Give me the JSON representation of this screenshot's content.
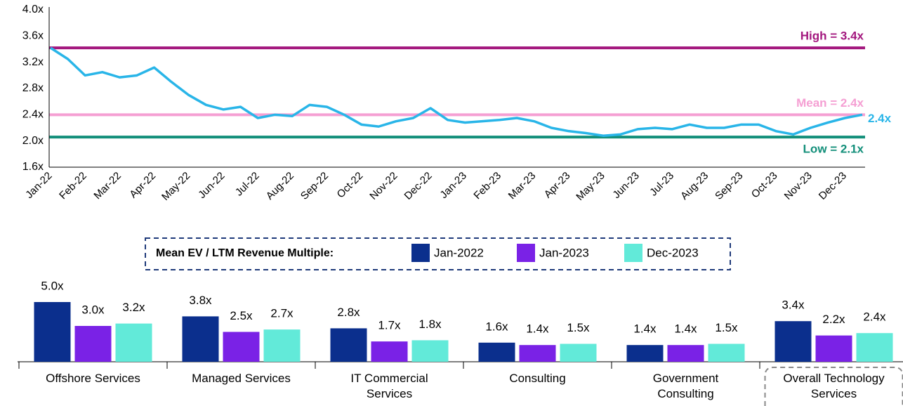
{
  "chart_data": [
    {
      "type": "line",
      "categories": [
        "Jan-22",
        null,
        "Feb-22",
        null,
        "Mar-22",
        null,
        "Apr-22",
        null,
        "May-22",
        null,
        "Jun-22",
        null,
        "Jul-22",
        null,
        "Aug-22",
        null,
        "Sep-22",
        null,
        "Oct-22",
        null,
        "Nov-22",
        null,
        "Dec-22",
        null,
        "Jan-23",
        null,
        "Feb-23",
        null,
        "Mar-23",
        null,
        "Apr-23",
        null,
        "May-23",
        null,
        "Jun-23",
        null,
        "Jul-23",
        null,
        "Aug-23",
        null,
        "Sep-23",
        null,
        "Oct-23",
        null,
        "Nov-23",
        null,
        "Dec-23",
        null
      ],
      "series": [
        {
          "color": "#29b5e8",
          "values": [
            3.42,
            3.25,
            3.0,
            3.05,
            2.97,
            3.0,
            3.12,
            2.9,
            2.7,
            2.55,
            2.48,
            2.52,
            2.35,
            2.4,
            2.38,
            2.55,
            2.52,
            2.4,
            2.25,
            2.22,
            2.3,
            2.35,
            2.5,
            2.32,
            2.28,
            2.3,
            2.32,
            2.35,
            2.3,
            2.2,
            2.15,
            2.12,
            2.08,
            2.1,
            2.18,
            2.2,
            2.18,
            2.25,
            2.2,
            2.2,
            2.25,
            2.25,
            2.15,
            2.1,
            2.2,
            2.28,
            2.35,
            2.4
          ]
        }
      ],
      "ylim": [
        1.6,
        4.0
      ],
      "yticks": [
        {
          "value": 1.6,
          "label": "1.6x"
        },
        {
          "value": 2.0,
          "label": "2.0x"
        },
        {
          "value": 2.4,
          "label": "2.4x"
        },
        {
          "value": 2.8,
          "label": "2.8x"
        },
        {
          "value": 3.2,
          "label": "3.2x"
        },
        {
          "value": 3.6,
          "label": "3.6x"
        },
        {
          "value": 4.0,
          "label": "4.0x"
        }
      ],
      "reference_lines": [
        {
          "label": "High = 3.4x",
          "value": 3.42,
          "color": "#a3177e",
          "label_side": "above"
        },
        {
          "label": "Mean = 2.4x",
          "value": 2.4,
          "color": "#f59fd3",
          "label_side": "above"
        },
        {
          "label": "Low = 2.1x",
          "value": 2.06,
          "color": "#138f7a",
          "label_side": "below"
        }
      ],
      "end_label": {
        "value": 2.4,
        "label": "2.4x"
      }
    },
    {
      "type": "grouped_bar",
      "legend_title": "Mean EV / LTM Revenue Multiple:",
      "categories": [
        "Offshore Services",
        "Managed Services",
        "IT Commercial Services",
        "Consulting",
        "Government Consulting",
        "Overall Technology Services"
      ],
      "highlight_category": 5,
      "series": [
        {
          "name": "Jan-2022",
          "color": "#0b2f8d",
          "values": [
            5.0,
            3.8,
            2.8,
            1.6,
            1.4,
            3.4
          ],
          "value_labels": [
            "5.0x",
            "3.8x",
            "2.8x",
            "1.6x",
            "1.4x",
            "3.4x"
          ]
        },
        {
          "name": "Jan-2023",
          "color": "#7a22e6",
          "values": [
            3.0,
            2.5,
            1.7,
            1.4,
            1.4,
            2.2
          ],
          "value_labels": [
            "3.0x",
            "2.5x",
            "1.7x",
            "1.4x",
            "1.4x",
            "2.2x"
          ]
        },
        {
          "name": "Dec-2023",
          "color": "#62ead9",
          "values": [
            3.2,
            2.7,
            1.8,
            1.5,
            1.5,
            2.4
          ],
          "value_labels": [
            "3.2x",
            "2.7x",
            "1.8x",
            "1.5x",
            "1.5x",
            "2.4x"
          ]
        }
      ]
    }
  ]
}
